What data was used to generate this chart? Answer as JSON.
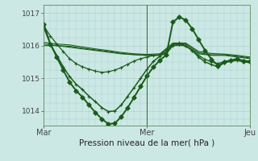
{
  "bg_color": "#cce8e4",
  "grid_color": "#aacccc",
  "line_color": "#1a5c1a",
  "xlabel": "Pression niveau de la mer( hPa )",
  "xtick_labels": [
    "Mar",
    "Mer",
    "Jeu"
  ],
  "ytick_values": [
    1014,
    1015,
    1016,
    1017
  ],
  "ylim": [
    1013.55,
    1017.25
  ],
  "xlim": [
    0,
    96
  ],
  "mar_x": 0,
  "mer_x": 48,
  "jeu_x": 96,
  "series": [
    {
      "x": [
        0,
        6,
        12,
        18,
        24,
        30,
        36,
        42,
        48,
        54,
        60,
        66,
        72,
        78,
        84,
        90,
        96
      ],
      "y": [
        1016.0,
        1016.0,
        1015.95,
        1015.9,
        1015.85,
        1015.8,
        1015.75,
        1015.72,
        1015.7,
        1015.7,
        1016.0,
        1016.0,
        1015.75,
        1015.7,
        1015.7,
        1015.65,
        1015.6
      ],
      "marker": null,
      "lw": 0.8
    },
    {
      "x": [
        0,
        6,
        12,
        18,
        24,
        30,
        36,
        42,
        48,
        54,
        60,
        66,
        72,
        78,
        84,
        90,
        96
      ],
      "y": [
        1016.05,
        1016.0,
        1015.98,
        1015.92,
        1015.87,
        1015.82,
        1015.76,
        1015.73,
        1015.7,
        1015.72,
        1016.05,
        1016.05,
        1015.78,
        1015.72,
        1015.72,
        1015.68,
        1015.62
      ],
      "marker": null,
      "lw": 0.8
    },
    {
      "x": [
        0,
        6,
        12,
        18,
        24,
        30,
        36,
        42,
        48,
        54,
        60,
        66,
        72,
        78,
        84,
        90,
        96
      ],
      "y": [
        1016.1,
        1016.05,
        1016.02,
        1015.96,
        1015.9,
        1015.85,
        1015.79,
        1015.75,
        1015.73,
        1015.75,
        1016.08,
        1016.08,
        1015.82,
        1015.76,
        1015.74,
        1015.7,
        1015.65
      ],
      "marker": null,
      "lw": 0.8
    },
    {
      "x": [
        0,
        3,
        6,
        9,
        12,
        15,
        18,
        21,
        24,
        27,
        30,
        33,
        36,
        39,
        42,
        45,
        48,
        51,
        54,
        57,
        60,
        63,
        66,
        69,
        72,
        75,
        78,
        81,
        84,
        87,
        90,
        93,
        96
      ],
      "y": [
        1016.6,
        1016.3,
        1016.05,
        1015.82,
        1015.6,
        1015.45,
        1015.35,
        1015.28,
        1015.22,
        1015.18,
        1015.2,
        1015.25,
        1015.33,
        1015.43,
        1015.53,
        1015.6,
        1015.65,
        1015.7,
        1015.72,
        1015.75,
        1016.0,
        1016.05,
        1015.98,
        1015.85,
        1015.7,
        1015.58,
        1015.5,
        1015.45,
        1015.52,
        1015.55,
        1015.58,
        1015.55,
        1015.52
      ],
      "marker": "+",
      "markersize": 3,
      "lw": 0.9
    },
    {
      "x": [
        0,
        3,
        6,
        9,
        12,
        15,
        18,
        21,
        24,
        27,
        30,
        33,
        36,
        39,
        42,
        45,
        48,
        51,
        54,
        57,
        60,
        63,
        66,
        69,
        72,
        75,
        78,
        81,
        84,
        87,
        90,
        93,
        96
      ],
      "y": [
        1016.55,
        1016.05,
        1015.7,
        1015.35,
        1015.05,
        1014.82,
        1014.65,
        1014.45,
        1014.28,
        1014.1,
        1013.98,
        1014.0,
        1014.18,
        1014.45,
        1014.72,
        1015.0,
        1015.28,
        1015.52,
        1015.68,
        1015.8,
        1016.05,
        1016.08,
        1016.0,
        1015.85,
        1015.65,
        1015.5,
        1015.42,
        1015.35,
        1015.48,
        1015.52,
        1015.55,
        1015.5,
        1015.48
      ],
      "marker": "+",
      "markersize": 3,
      "lw": 1.1
    },
    {
      "x": [
        0,
        3,
        6,
        9,
        12,
        15,
        18,
        21,
        24,
        27,
        30,
        33,
        36,
        39,
        42,
        45,
        48,
        51,
        54,
        57,
        60,
        63,
        66,
        69,
        72,
        75,
        78,
        81,
        84,
        87,
        90,
        93,
        96
      ],
      "y": [
        1016.65,
        1016.05,
        1015.65,
        1015.25,
        1014.88,
        1014.62,
        1014.42,
        1014.18,
        1013.95,
        1013.75,
        1013.6,
        1013.62,
        1013.82,
        1014.1,
        1014.42,
        1014.75,
        1015.08,
        1015.35,
        1015.55,
        1015.72,
        1016.72,
        1016.88,
        1016.78,
        1016.52,
        1016.18,
        1015.85,
        1015.58,
        1015.38,
        1015.5,
        1015.55,
        1015.6,
        1015.52,
        1015.52
      ],
      "marker": "D",
      "markersize": 2.8,
      "lw": 1.4
    }
  ]
}
